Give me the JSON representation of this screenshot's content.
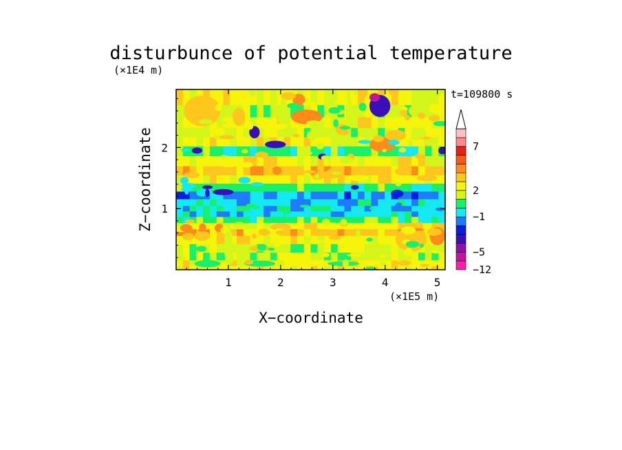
{
  "chart_data": {
    "type": "heatmap",
    "title": "disturbunce of potential temperature",
    "xlabel": "X−coordinate",
    "ylabel": "Z−coordinate",
    "x_unit": "(×1E5 m)",
    "y_unit": "(×1E4 m)",
    "time_label": "t=109800 s",
    "xlim": [
      0,
      5.15
    ],
    "ylim": [
      0,
      2.95
    ],
    "xticks": [
      1,
      2,
      3,
      4,
      5
    ],
    "yticks": [
      1,
      2
    ],
    "tick_labels_x": [
      "1",
      "2",
      "3",
      "4",
      "5"
    ],
    "tick_labels_y": [
      "1",
      "2"
    ],
    "colorbar": {
      "colors": [
        "#ff1fa9",
        "#c0169f",
        "#8b12a8",
        "#3a0fb8",
        "#0a1ee0",
        "#1e7bff",
        "#14e8f0",
        "#18f06a",
        "#d4f51a",
        "#f6f40a",
        "#ffc61e",
        "#ff8b1a",
        "#ff5a12",
        "#e82016",
        "#ff8a8a",
        "#ffc0c0"
      ],
      "tick_labels": [
        "7",
        "2",
        "−1",
        "−5",
        "−12"
      ],
      "tick_levels": [
        7,
        2,
        -1,
        -5,
        -12
      ],
      "extend": "max"
    },
    "layers": [
      {
        "z": 0.03,
        "dominant": 2
      },
      {
        "z": 0.1,
        "dominant": 2
      },
      {
        "z": 0.22,
        "dominant": 1
      },
      {
        "z": 0.35,
        "dominant": 1
      },
      {
        "z": 0.5,
        "dominant": 2
      },
      {
        "z": 0.62,
        "dominant": 3
      },
      {
        "z": 0.72,
        "dominant": 2
      },
      {
        "z": 0.82,
        "dominant": 0
      },
      {
        "z": 0.92,
        "dominant": -1
      },
      {
        "z": 1.0,
        "dominant": -1
      },
      {
        "z": 1.1,
        "dominant": -1
      },
      {
        "z": 1.22,
        "dominant": -2
      },
      {
        "z": 1.35,
        "dominant": 0
      },
      {
        "z": 1.48,
        "dominant": 2
      },
      {
        "z": 1.62,
        "dominant": 3
      },
      {
        "z": 1.78,
        "dominant": 2
      },
      {
        "z": 1.95,
        "dominant": 0
      },
      {
        "z": 2.1,
        "dominant": 2
      },
      {
        "z": 2.25,
        "dominant": 1
      },
      {
        "z": 2.4,
        "dominant": 2
      },
      {
        "z": 2.6,
        "dominant": 1
      },
      {
        "z": 2.8,
        "dominant": 2
      }
    ]
  }
}
